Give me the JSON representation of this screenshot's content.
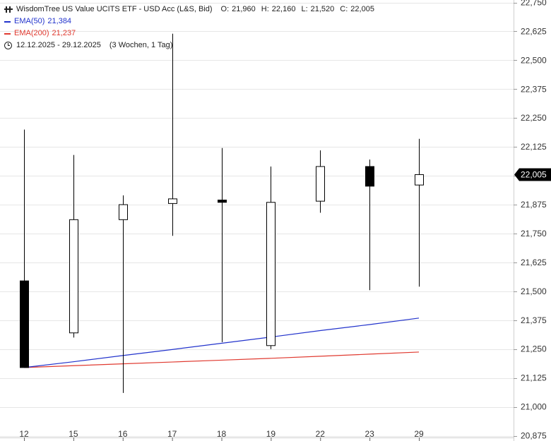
{
  "legend": {
    "title": "WisdomTree US Value UCITS ETF - USD Acc (L&S, Bid)",
    "open_label": "O:",
    "open": "21,960",
    "high_label": "H:",
    "high": "22,160",
    "low_label": "L:",
    "low": "21,520",
    "close_label": "C:",
    "close": "22,005",
    "ema50_label": "EMA(50)",
    "ema50_value": "21,384",
    "ema200_label": "EMA(200)",
    "ema200_value": "21,237",
    "range": "12.12.2025 - 29.12.2025",
    "period": "(3 Wochen, 1 Tag)"
  },
  "colors": {
    "ema50": "#2233cc",
    "ema200": "#e03a30",
    "candle_down": "#000000",
    "candle_up": "#ffffff",
    "grid": "#e6e6e6"
  },
  "chart_data": {
    "type": "candlestick",
    "categories": [
      "12",
      "15",
      "16",
      "17",
      "18",
      "19",
      "22",
      "23",
      "29"
    ],
    "candles": [
      {
        "o": 21.545,
        "h": 22.2,
        "l": 21.17,
        "c": 21.17
      },
      {
        "o": 21.32,
        "h": 22.09,
        "l": 21.3,
        "c": 21.81
      },
      {
        "o": 21.81,
        "h": 21.915,
        "l": 21.06,
        "c": 21.875
      },
      {
        "o": 21.88,
        "h": 22.615,
        "l": 21.74,
        "c": 21.9
      },
      {
        "o": 21.895,
        "h": 22.12,
        "l": 21.28,
        "c": 21.885
      },
      {
        "o": 21.265,
        "h": 22.04,
        "l": 21.25,
        "c": 21.885
      },
      {
        "o": 21.89,
        "h": 22.11,
        "l": 21.84,
        "c": 22.04
      },
      {
        "o": 22.04,
        "h": 22.07,
        "l": 21.505,
        "c": 21.955
      },
      {
        "o": 21.96,
        "h": 22.16,
        "l": 21.52,
        "c": 22.005
      }
    ],
    "ema50": [
      21.17,
      21.195,
      21.222,
      21.248,
      21.275,
      21.302,
      21.33,
      21.356,
      21.384
    ],
    "ema200": [
      21.17,
      21.178,
      21.186,
      21.194,
      21.202,
      21.21,
      21.219,
      21.228,
      21.237
    ],
    "ylim": [
      20.875,
      22.75
    ],
    "y_ticks": [
      "20,875",
      "21,000",
      "21,125",
      "21,250",
      "21,375",
      "21,500",
      "21,625",
      "21,750",
      "21,875",
      "22,000",
      "22,125",
      "22,250",
      "22,375",
      "22,500",
      "22,625",
      "22,750"
    ],
    "last_price_label": "22,005",
    "last_price": 22.005
  }
}
